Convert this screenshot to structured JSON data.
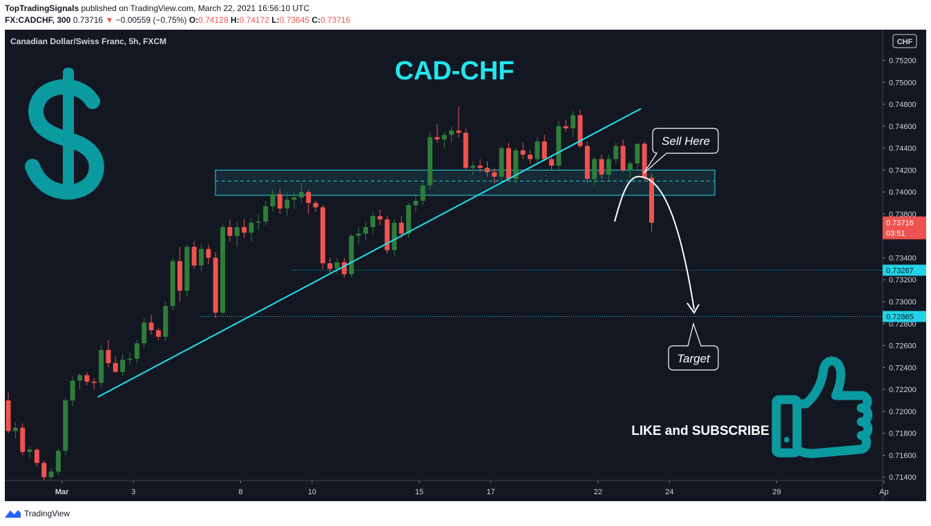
{
  "header": {
    "author": "TopTradingSignals",
    "published": "published on TradingView.com, March 22, 2021 16:56:10 UTC",
    "symbol": "FX:CADCHF, 300",
    "last": "0.73716",
    "change": "−0.00559 (−0.75%)",
    "o_label": "O:",
    "o_value": "0.74128",
    "h_label": "H:",
    "h_value": "0.74172",
    "l_label": "L:",
    "l_value": "0.73645",
    "c_label": "C:",
    "c_value": "0.73716"
  },
  "chart_data": {
    "type": "candlestick",
    "legend": "Canadian Dollar/Swiss Franc, 5h, FXCM",
    "title": "CAD-CHF",
    "currency": "CHF",
    "ylim": [
      0.7137,
      0.7548
    ],
    "y_ticks": [
      0.714,
      0.716,
      0.718,
      0.72,
      0.722,
      0.724,
      0.726,
      0.728,
      0.73,
      0.732,
      0.734,
      0.736,
      0.738,
      0.74,
      0.742,
      0.744,
      0.746,
      0.748,
      0.75,
      0.752
    ],
    "y_tick_labels": [
      "0.71400",
      "0.71600",
      "0.71800",
      "0.72000",
      "0.72200",
      "0.72400",
      "0.72600",
      "0.72800",
      "0.73000",
      "0.73200",
      "0.73400",
      "0.73600",
      "0.73800",
      "0.74000",
      "0.74200",
      "0.74400",
      "0.74600",
      "0.74800",
      "0.75000",
      "0.75200"
    ],
    "x_ticks": [
      {
        "i": 7.5,
        "label": "Mar"
      },
      {
        "i": 17.5,
        "label": "3"
      },
      {
        "i": 32.5,
        "label": "8"
      },
      {
        "i": 42.5,
        "label": "10"
      },
      {
        "i": 57.5,
        "label": "15"
      },
      {
        "i": 67.5,
        "label": "17"
      },
      {
        "i": 82.5,
        "label": "22"
      },
      {
        "i": 92.5,
        "label": "24"
      },
      {
        "i": 107.5,
        "label": "29"
      },
      {
        "i": 122.5,
        "label": "Ap"
      }
    ],
    "candles": [
      [
        0.721,
        0.7217,
        0.718,
        0.7182
      ],
      [
        0.7182,
        0.719,
        0.7175,
        0.7185
      ],
      [
        0.7185,
        0.7189,
        0.716,
        0.7163
      ],
      [
        0.7163,
        0.7168,
        0.7158,
        0.7165
      ],
      [
        0.7165,
        0.7167,
        0.715,
        0.7153
      ],
      [
        0.7153,
        0.7155,
        0.7137,
        0.714
      ],
      [
        0.714,
        0.7148,
        0.7138,
        0.7145
      ],
      [
        0.7145,
        0.7166,
        0.7142,
        0.7164
      ],
      [
        0.7164,
        0.7212,
        0.716,
        0.721
      ],
      [
        0.721,
        0.7232,
        0.7205,
        0.7228
      ],
      [
        0.7228,
        0.7235,
        0.722,
        0.7233
      ],
      [
        0.7233,
        0.7236,
        0.7224,
        0.7227
      ],
      [
        0.7227,
        0.723,
        0.722,
        0.7226
      ],
      [
        0.7226,
        0.726,
        0.7222,
        0.7256
      ],
      [
        0.7256,
        0.7265,
        0.724,
        0.7244
      ],
      [
        0.7244,
        0.725,
        0.7235,
        0.7236
      ],
      [
        0.7236,
        0.7252,
        0.7232,
        0.7247
      ],
      [
        0.7247,
        0.7254,
        0.7242,
        0.7248
      ],
      [
        0.7248,
        0.7265,
        0.7244,
        0.7262
      ],
      [
        0.7262,
        0.7285,
        0.7258,
        0.7281
      ],
      [
        0.7281,
        0.7288,
        0.727,
        0.7274
      ],
      [
        0.7274,
        0.7276,
        0.7265,
        0.7268
      ],
      [
        0.7268,
        0.73,
        0.7264,
        0.7296
      ],
      [
        0.7296,
        0.734,
        0.7292,
        0.7337
      ],
      [
        0.7337,
        0.735,
        0.73,
        0.731
      ],
      [
        0.731,
        0.7352,
        0.7305,
        0.735
      ],
      [
        0.735,
        0.7355,
        0.733,
        0.7333
      ],
      [
        0.7333,
        0.7353,
        0.7328,
        0.7348
      ],
      [
        0.7348,
        0.7352,
        0.7334,
        0.734
      ],
      [
        0.734,
        0.7345,
        0.7285,
        0.729
      ],
      [
        0.729,
        0.737,
        0.7288,
        0.7368
      ],
      [
        0.7368,
        0.7375,
        0.7355,
        0.736
      ],
      [
        0.736,
        0.7373,
        0.735,
        0.7368
      ],
      [
        0.7368,
        0.7375,
        0.7358,
        0.7363
      ],
      [
        0.7363,
        0.7376,
        0.7355,
        0.7372
      ],
      [
        0.7372,
        0.738,
        0.7365,
        0.7373
      ],
      [
        0.7373,
        0.7392,
        0.737,
        0.7387
      ],
      [
        0.7387,
        0.7402,
        0.7382,
        0.7398
      ],
      [
        0.7398,
        0.7403,
        0.738,
        0.7385
      ],
      [
        0.7385,
        0.74,
        0.7378,
        0.7393
      ],
      [
        0.7393,
        0.74,
        0.7384,
        0.7395
      ],
      [
        0.7395,
        0.7408,
        0.739,
        0.74
      ],
      [
        0.74,
        0.7402,
        0.738,
        0.739
      ],
      [
        0.739,
        0.7392,
        0.7382,
        0.7386
      ],
      [
        0.7386,
        0.7388,
        0.733,
        0.7335
      ],
      [
        0.7335,
        0.734,
        0.7325,
        0.733
      ],
      [
        0.733,
        0.734,
        0.7325,
        0.7336
      ],
      [
        0.7336,
        0.734,
        0.7322,
        0.7325
      ],
      [
        0.7325,
        0.7362,
        0.7322,
        0.736
      ],
      [
        0.736,
        0.7368,
        0.7352,
        0.7362
      ],
      [
        0.7362,
        0.7372,
        0.7356,
        0.7368
      ],
      [
        0.7368,
        0.7382,
        0.7362,
        0.7378
      ],
      [
        0.7378,
        0.7384,
        0.737,
        0.7375
      ],
      [
        0.7375,
        0.7378,
        0.7344,
        0.7347
      ],
      [
        0.7347,
        0.7375,
        0.7342,
        0.7372
      ],
      [
        0.7372,
        0.7378,
        0.7358,
        0.7362
      ],
      [
        0.7362,
        0.739,
        0.7358,
        0.7388
      ],
      [
        0.7388,
        0.7396,
        0.7382,
        0.7392
      ],
      [
        0.7392,
        0.741,
        0.7388,
        0.7406
      ],
      [
        0.7406,
        0.7455,
        0.7402,
        0.745
      ],
      [
        0.745,
        0.7462,
        0.7445,
        0.7448
      ],
      [
        0.7448,
        0.7455,
        0.744,
        0.7452
      ],
      [
        0.7452,
        0.746,
        0.7445,
        0.7456
      ],
      [
        0.7456,
        0.7478,
        0.745,
        0.7454
      ],
      [
        0.7454,
        0.7458,
        0.742,
        0.7422
      ],
      [
        0.7422,
        0.7428,
        0.7415,
        0.7424
      ],
      [
        0.7424,
        0.743,
        0.7418,
        0.7422
      ],
      [
        0.7422,
        0.7428,
        0.7414,
        0.7418
      ],
      [
        0.7418,
        0.7422,
        0.7408,
        0.7414
      ],
      [
        0.7414,
        0.7442,
        0.741,
        0.744
      ],
      [
        0.744,
        0.7445,
        0.741,
        0.7412
      ],
      [
        0.7412,
        0.744,
        0.7408,
        0.7438
      ],
      [
        0.7438,
        0.7445,
        0.743,
        0.7434
      ],
      [
        0.7434,
        0.7438,
        0.7426,
        0.743
      ],
      [
        0.743,
        0.745,
        0.7425,
        0.7446
      ],
      [
        0.7446,
        0.7452,
        0.7428,
        0.743
      ],
      [
        0.743,
        0.7434,
        0.742,
        0.7424
      ],
      [
        0.7424,
        0.7465,
        0.742,
        0.746
      ],
      [
        0.746,
        0.7466,
        0.7455,
        0.7458
      ],
      [
        0.7458,
        0.7474,
        0.745,
        0.747
      ],
      [
        0.747,
        0.7475,
        0.744,
        0.7442
      ],
      [
        0.7442,
        0.7446,
        0.7408,
        0.7412
      ],
      [
        0.7412,
        0.7432,
        0.7406,
        0.743
      ],
      [
        0.743,
        0.7434,
        0.7412,
        0.7416
      ],
      [
        0.7416,
        0.7434,
        0.741,
        0.743
      ],
      [
        0.743,
        0.7445,
        0.7426,
        0.7442
      ],
      [
        0.7442,
        0.7448,
        0.7418,
        0.742
      ],
      [
        0.742,
        0.7428,
        0.7412,
        0.7426
      ],
      [
        0.7426,
        0.7444,
        0.742,
        0.7444
      ],
      [
        0.7444,
        0.7446,
        0.741,
        0.7413
      ],
      [
        0.7413,
        0.7417,
        0.7364,
        0.7372
      ]
    ],
    "resistance_zone": [
      0.7397,
      0.742
    ],
    "resistance_mid": 0.741,
    "levels": [
      {
        "value": 0.73287,
        "label": "0.73287"
      },
      {
        "value": 0.72865,
        "label": "0.72865"
      }
    ],
    "trendline": [
      [
        12.5,
        0.7213
      ],
      [
        88.5,
        0.7476
      ]
    ],
    "last_price_label": "0.73716",
    "countdown_label": "03:51",
    "annotations": {
      "sell": "Sell Here",
      "target": "Target",
      "cta": "LIKE and SUBSCRIBE"
    },
    "colors": {
      "up": "#26a69a",
      "down": "#ef5350",
      "background": "#131722",
      "trendline": "#22e1f0",
      "title": "#22e6f0",
      "zone": "#2bd4e2",
      "level": "#29c8d8",
      "icon": "#0a9aa0",
      "axis_text": "#d1d4dc",
      "up_candle": "#2e7d3a"
    }
  },
  "footer": {
    "brand": "TradingView"
  }
}
